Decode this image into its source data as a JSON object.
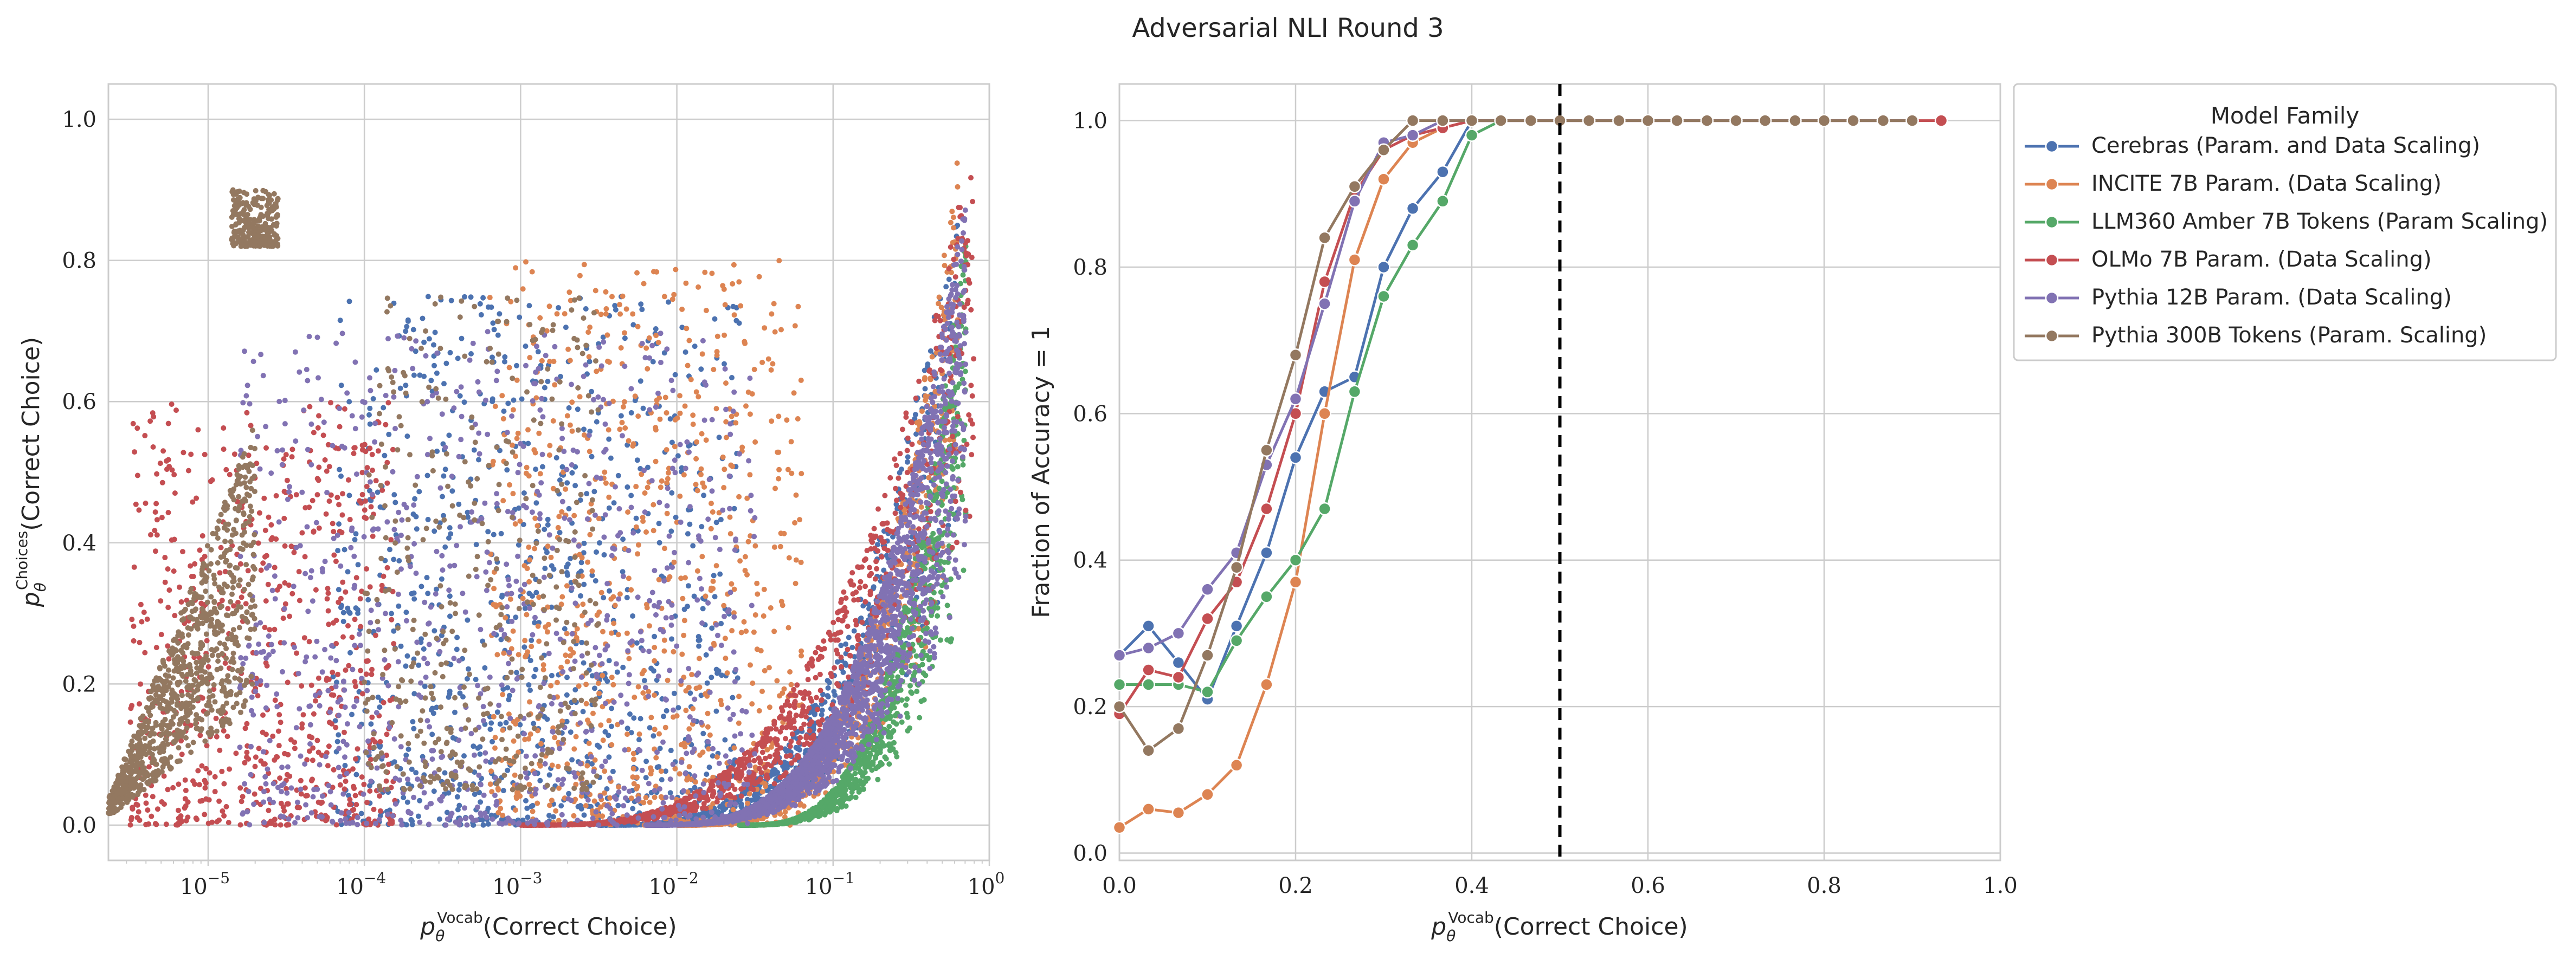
{
  "figure": {
    "title": "Adversarial NLI Round 3"
  },
  "chart_data": [
    {
      "type": "scatter",
      "xlabel_prefix": "p",
      "xlabel_sub": "θ",
      "xlabel_sup": "Vocab",
      "xlabel_suffix": "(Correct Choice)",
      "ylabel_prefix": "p",
      "ylabel_sub": "θ",
      "ylabel_sup": "Choices",
      "ylabel_suffix": "(Correct Choice)",
      "xscale": "log",
      "xlim": [
        2.3e-06,
        1.0
      ],
      "ylim": [
        -0.05,
        1.05
      ],
      "grid": true,
      "xticks": [
        {
          "value": 1e-05,
          "base": "10",
          "exp": "−5"
        },
        {
          "value": 0.0001,
          "base": "10",
          "exp": "−4"
        },
        {
          "value": 0.001,
          "base": "10",
          "exp": "−3"
        },
        {
          "value": 0.01,
          "base": "10",
          "exp": "−2"
        },
        {
          "value": 0.1,
          "base": "10",
          "exp": "−1"
        },
        {
          "value": 1,
          "base": "10",
          "exp": "0"
        }
      ],
      "yticks": [
        {
          "value": 0.0,
          "label": "0.0"
        },
        {
          "value": 0.2,
          "label": "0.2"
        },
        {
          "value": 0.4,
          "label": "0.4"
        },
        {
          "value": 0.6,
          "label": "0.6"
        },
        {
          "value": 0.8,
          "label": "0.8"
        },
        {
          "value": 1.0,
          "label": "1.0"
        }
      ],
      "series": [
        {
          "color": "#4c72b0",
          "clusters": [
            {
              "logx": [
                -4.2,
                -1.6
              ],
              "y": [
                0.0,
                0.75
              ],
              "n": 900,
              "shape": "uniform"
            },
            {
              "logx": [
                -2.5,
                -0.2
              ],
              "y": [
                0.0,
                0.9
              ],
              "n": 700,
              "shape": "curve"
            }
          ]
        },
        {
          "color": "#dd8452",
          "clusters": [
            {
              "logx": [
                -3.2,
                -1.2
              ],
              "y": [
                0.0,
                0.8
              ],
              "n": 800,
              "shape": "uniform"
            },
            {
              "logx": [
                -2.0,
                -0.2
              ],
              "y": [
                0.0,
                0.95
              ],
              "n": 800,
              "shape": "curve"
            }
          ]
        },
        {
          "color": "#55a868",
          "clusters": [
            {
              "logx": [
                -1.6,
                -0.15
              ],
              "y": [
                0.0,
                0.85
              ],
              "n": 1200,
              "shape": "curve"
            }
          ]
        },
        {
          "color": "#c44e52",
          "clusters": [
            {
              "logx": [
                -5.5,
                -3.8
              ],
              "y": [
                0.0,
                0.6
              ],
              "n": 700,
              "shape": "uniform"
            },
            {
              "logx": [
                -3.0,
                -0.1
              ],
              "y": [
                0.0,
                0.98
              ],
              "n": 1000,
              "shape": "curve"
            }
          ]
        },
        {
          "color": "#8172b3",
          "clusters": [
            {
              "logx": [
                -4.8,
                -1.5
              ],
              "y": [
                0.0,
                0.7
              ],
              "n": 900,
              "shape": "uniform"
            },
            {
              "logx": [
                -2.2,
                -0.15
              ],
              "y": [
                0.0,
                0.9
              ],
              "n": 2600,
              "shape": "curve"
            }
          ]
        },
        {
          "color": "#937860",
          "clusters": [
            {
              "logx": [
                -5.65,
                -4.7
              ],
              "y": [
                0.0,
                0.6
              ],
              "n": 900,
              "shape": "band"
            },
            {
              "logx": [
                -4.85,
                -4.55
              ],
              "y": [
                0.82,
                0.9
              ],
              "n": 250,
              "shape": "uniform"
            },
            {
              "logx": [
                -4.0,
                -2.5
              ],
              "y": [
                0.05,
                0.75
              ],
              "n": 400,
              "shape": "uniform"
            }
          ]
        }
      ]
    },
    {
      "type": "line",
      "xlabel_prefix": "p",
      "xlabel_sub": "θ",
      "xlabel_sup": "Vocab",
      "xlabel_suffix": "(Correct Choice)",
      "ylabel": "Fraction of Accuracy = 1",
      "xlim": [
        0.0,
        1.0
      ],
      "ylim": [
        -0.01,
        1.05
      ],
      "grid": true,
      "vline": 0.5,
      "xticks": [
        {
          "value": 0.0,
          "label": "0.0"
        },
        {
          "value": 0.2,
          "label": "0.2"
        },
        {
          "value": 0.4,
          "label": "0.4"
        },
        {
          "value": 0.6,
          "label": "0.6"
        },
        {
          "value": 0.8,
          "label": "0.8"
        },
        {
          "value": 1.0,
          "label": "1.0"
        }
      ],
      "yticks": [
        {
          "value": 0.0,
          "label": "0.0"
        },
        {
          "value": 0.2,
          "label": "0.2"
        },
        {
          "value": 0.4,
          "label": "0.4"
        },
        {
          "value": 0.6,
          "label": "0.6"
        },
        {
          "value": 0.8,
          "label": "0.8"
        },
        {
          "value": 1.0,
          "label": "1.0"
        }
      ],
      "legend": {
        "title": "Model Family",
        "position": "outside upper-right"
      },
      "series": [
        {
          "name": "Cerebras (Param. and Data Scaling)",
          "color": "#4c72b0",
          "x": [
            0.0,
            0.033,
            0.067,
            0.1,
            0.133,
            0.167,
            0.2,
            0.233,
            0.267,
            0.3,
            0.333,
            0.367,
            0.4,
            0.433
          ],
          "y": [
            0.27,
            0.31,
            0.26,
            0.21,
            0.31,
            0.41,
            0.54,
            0.63,
            0.65,
            0.8,
            0.88,
            0.93,
            1.0,
            1.0
          ]
        },
        {
          "name": "INCITE 7B Param. (Data Scaling)",
          "color": "#dd8452",
          "x": [
            0.0,
            0.033,
            0.067,
            0.1,
            0.133,
            0.167,
            0.2,
            0.233,
            0.267,
            0.3,
            0.333,
            0.367,
            0.4,
            0.433
          ],
          "y": [
            0.035,
            0.06,
            0.055,
            0.08,
            0.12,
            0.23,
            0.37,
            0.6,
            0.81,
            0.92,
            0.97,
            0.99,
            1.0,
            1.0
          ]
        },
        {
          "name": "LLM360 Amber 7B Tokens (Param Scaling)",
          "color": "#55a868",
          "x": [
            0.0,
            0.033,
            0.067,
            0.1,
            0.133,
            0.167,
            0.2,
            0.233,
            0.267,
            0.3,
            0.333,
            0.367,
            0.4,
            0.433
          ],
          "y": [
            0.23,
            0.23,
            0.23,
            0.22,
            0.29,
            0.35,
            0.4,
            0.47,
            0.63,
            0.76,
            0.83,
            0.89,
            0.98,
            1.0
          ]
        },
        {
          "name": "OLMo 7B Param. (Data Scaling)",
          "color": "#c44e52",
          "x": [
            0.0,
            0.033,
            0.067,
            0.1,
            0.133,
            0.167,
            0.2,
            0.233,
            0.267,
            0.3,
            0.333,
            0.367,
            0.4,
            0.433,
            0.467,
            0.5,
            0.533,
            0.567,
            0.6,
            0.633,
            0.667,
            0.7,
            0.733,
            0.767,
            0.8,
            0.833,
            0.867,
            0.9,
            0.933
          ],
          "y": [
            0.19,
            0.25,
            0.24,
            0.32,
            0.37,
            0.47,
            0.6,
            0.78,
            0.9,
            0.96,
            0.98,
            0.99,
            1.0,
            1.0,
            1.0,
            1.0,
            1.0,
            1.0,
            1.0,
            1.0,
            1.0,
            1.0,
            1.0,
            1.0,
            1.0,
            1.0,
            1.0,
            1.0,
            1.0
          ]
        },
        {
          "name": "Pythia 12B Param. (Data Scaling)",
          "color": "#8172b3",
          "x": [
            0.0,
            0.033,
            0.067,
            0.1,
            0.133,
            0.167,
            0.2,
            0.233,
            0.267,
            0.3,
            0.333,
            0.367,
            0.4,
            0.433,
            0.467,
            0.5,
            0.533,
            0.567,
            0.6,
            0.633,
            0.667,
            0.7,
            0.733,
            0.767,
            0.8,
            0.833,
            0.867,
            0.9
          ],
          "y": [
            0.27,
            0.28,
            0.3,
            0.36,
            0.41,
            0.53,
            0.62,
            0.75,
            0.89,
            0.97,
            0.98,
            1.0,
            1.0,
            1.0,
            1.0,
            1.0,
            1.0,
            1.0,
            1.0,
            1.0,
            1.0,
            1.0,
            1.0,
            1.0,
            1.0,
            1.0,
            1.0,
            1.0
          ]
        },
        {
          "name": "Pythia 300B Tokens (Param. Scaling)",
          "color": "#937860",
          "x": [
            0.0,
            0.033,
            0.067,
            0.1,
            0.133,
            0.167,
            0.2,
            0.233,
            0.267,
            0.3,
            0.333,
            0.367,
            0.4,
            0.433,
            0.467,
            0.5,
            0.533,
            0.567,
            0.6,
            0.633,
            0.667,
            0.7,
            0.733,
            0.767,
            0.8,
            0.833,
            0.867,
            0.9
          ],
          "y": [
            0.2,
            0.14,
            0.17,
            0.27,
            0.39,
            0.55,
            0.68,
            0.84,
            0.91,
            0.96,
            1.0,
            1.0,
            1.0,
            1.0,
            1.0,
            1.0,
            1.0,
            1.0,
            1.0,
            1.0,
            1.0,
            1.0,
            1.0,
            1.0,
            1.0,
            1.0,
            1.0,
            1.0
          ]
        }
      ]
    }
  ]
}
